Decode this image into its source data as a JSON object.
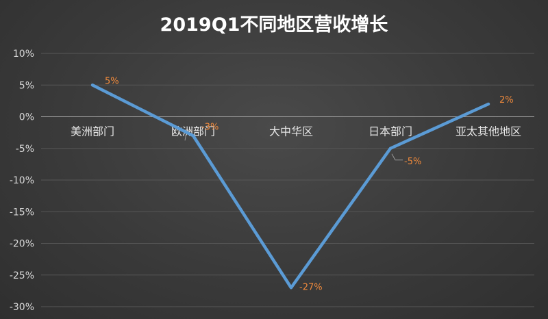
{
  "chart_data": {
    "type": "line",
    "title": "2019Q1不同地区营收增长",
    "categories": [
      "美洲部门",
      "欧洲部门",
      "大中华区",
      "日本部门",
      "亚太其他地区"
    ],
    "series": [
      {
        "values": [
          5,
          -3,
          -27,
          -5,
          2
        ],
        "data_labels": [
          "5%",
          "-3%",
          "-27%",
          "-5%",
          "2%"
        ],
        "color": "#5b9bd5"
      }
    ],
    "yticks": [
      10,
      5,
      0,
      -5,
      -10,
      -15,
      -20,
      -25,
      -30
    ],
    "ytick_labels": [
      "10%",
      "5%",
      "0%",
      "-5%",
      "-10%",
      "-15%",
      "-20%",
      "-25%",
      "-30%"
    ],
    "ylim": [
      -30,
      10
    ],
    "grid": true,
    "legend": "none",
    "colors": {
      "background": "#3a3a3a",
      "line": "#5b9bd5",
      "data_label": "#f08a3c",
      "text": "#e6e6e6"
    }
  }
}
